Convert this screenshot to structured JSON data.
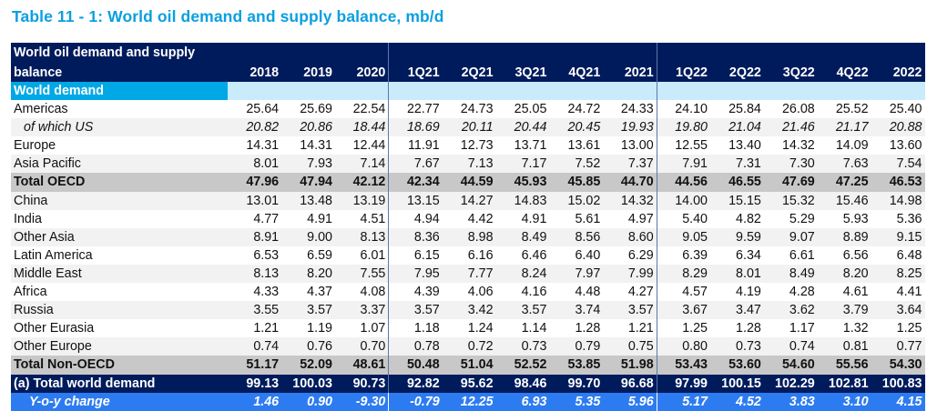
{
  "title": "Table 11 - 1: World oil demand and supply balance, mb/d",
  "header": {
    "label_line1": "World oil demand and supply",
    "label_line2": "balance",
    "columns": [
      "2018",
      "2019",
      "2020",
      "1Q21",
      "2Q21",
      "3Q21",
      "4Q21",
      "2021",
      "1Q22",
      "2Q22",
      "3Q22",
      "4Q22",
      "2022"
    ]
  },
  "section": {
    "label": "World demand"
  },
  "rows": [
    {
      "label": "Americas",
      "values": [
        "25.64",
        "25.69",
        "22.54",
        "22.77",
        "24.73",
        "25.05",
        "24.72",
        "24.33",
        "24.10",
        "25.84",
        "26.08",
        "25.52",
        "25.40"
      ]
    },
    {
      "label": "of which US",
      "values": [
        "20.82",
        "20.86",
        "18.44",
        "18.69",
        "20.11",
        "20.44",
        "20.45",
        "19.93",
        "19.80",
        "21.04",
        "21.46",
        "21.17",
        "20.88"
      ]
    },
    {
      "label": "Europe",
      "values": [
        "14.31",
        "14.31",
        "12.44",
        "11.91",
        "12.73",
        "13.71",
        "13.61",
        "13.00",
        "12.55",
        "13.40",
        "14.32",
        "14.09",
        "13.60"
      ]
    },
    {
      "label": "Asia Pacific",
      "values": [
        "8.01",
        "7.93",
        "7.14",
        "7.67",
        "7.13",
        "7.17",
        "7.52",
        "7.37",
        "7.91",
        "7.31",
        "7.30",
        "7.63",
        "7.54"
      ]
    },
    {
      "label": "Total OECD",
      "values": [
        "47.96",
        "47.94",
        "42.12",
        "42.34",
        "44.59",
        "45.93",
        "45.85",
        "44.70",
        "44.56",
        "46.55",
        "47.69",
        "47.25",
        "46.53"
      ]
    },
    {
      "label": "China",
      "values": [
        "13.01",
        "13.48",
        "13.19",
        "13.15",
        "14.27",
        "14.83",
        "15.02",
        "14.32",
        "14.00",
        "15.15",
        "15.32",
        "15.46",
        "14.98"
      ]
    },
    {
      "label": "India",
      "values": [
        "4.77",
        "4.91",
        "4.51",
        "4.94",
        "4.42",
        "4.91",
        "5.61",
        "4.97",
        "5.40",
        "4.82",
        "5.29",
        "5.93",
        "5.36"
      ]
    },
    {
      "label": "Other Asia",
      "values": [
        "8.91",
        "9.00",
        "8.13",
        "8.36",
        "8.98",
        "8.49",
        "8.56",
        "8.60",
        "9.05",
        "9.59",
        "9.07",
        "8.89",
        "9.15"
      ]
    },
    {
      "label": "Latin America",
      "values": [
        "6.53",
        "6.59",
        "6.01",
        "6.15",
        "6.16",
        "6.46",
        "6.40",
        "6.29",
        "6.39",
        "6.34",
        "6.61",
        "6.56",
        "6.48"
      ]
    },
    {
      "label": "Middle East",
      "values": [
        "8.13",
        "8.20",
        "7.55",
        "7.95",
        "7.77",
        "8.24",
        "7.97",
        "7.99",
        "8.29",
        "8.01",
        "8.49",
        "8.20",
        "8.25"
      ]
    },
    {
      "label": "Africa",
      "values": [
        "4.33",
        "4.37",
        "4.08",
        "4.39",
        "4.06",
        "4.16",
        "4.48",
        "4.27",
        "4.57",
        "4.19",
        "4.28",
        "4.61",
        "4.41"
      ]
    },
    {
      "label": "Russia",
      "values": [
        "3.55",
        "3.57",
        "3.37",
        "3.57",
        "3.42",
        "3.57",
        "3.74",
        "3.57",
        "3.67",
        "3.47",
        "3.62",
        "3.79",
        "3.64"
      ]
    },
    {
      "label": "Other Eurasia",
      "values": [
        "1.21",
        "1.19",
        "1.07",
        "1.18",
        "1.24",
        "1.14",
        "1.28",
        "1.21",
        "1.25",
        "1.28",
        "1.17",
        "1.32",
        "1.25"
      ]
    },
    {
      "label": "Other Europe",
      "values": [
        "0.74",
        "0.76",
        "0.70",
        "0.78",
        "0.72",
        "0.73",
        "0.79",
        "0.75",
        "0.80",
        "0.73",
        "0.74",
        "0.81",
        "0.77"
      ]
    },
    {
      "label": "Total Non-OECD",
      "values": [
        "51.17",
        "52.09",
        "48.61",
        "50.48",
        "51.04",
        "52.52",
        "53.85",
        "51.98",
        "53.43",
        "53.60",
        "54.60",
        "55.56",
        "54.30"
      ]
    },
    {
      "label": "(a) Total world demand",
      "values": [
        "99.13",
        "100.03",
        "90.73",
        "92.82",
        "95.62",
        "98.46",
        "99.70",
        "96.68",
        "97.99",
        "100.15",
        "102.29",
        "102.81",
        "100.83"
      ]
    },
    {
      "label": "Y-o-y change",
      "values": [
        "1.46",
        "0.90",
        "-9.30",
        "-0.79",
        "12.25",
        "6.93",
        "5.35",
        "5.96",
        "5.17",
        "4.52",
        "3.83",
        "3.10",
        "4.15"
      ]
    }
  ],
  "colors": {
    "title": "#0a9fe0",
    "header_bg": "#001b5c",
    "section_label_bg": "#00a8e6",
    "section_row_bg": "#c9ebfb",
    "total_bg": "#c8c8c8",
    "yoy_bg": "#2d7bf1"
  }
}
